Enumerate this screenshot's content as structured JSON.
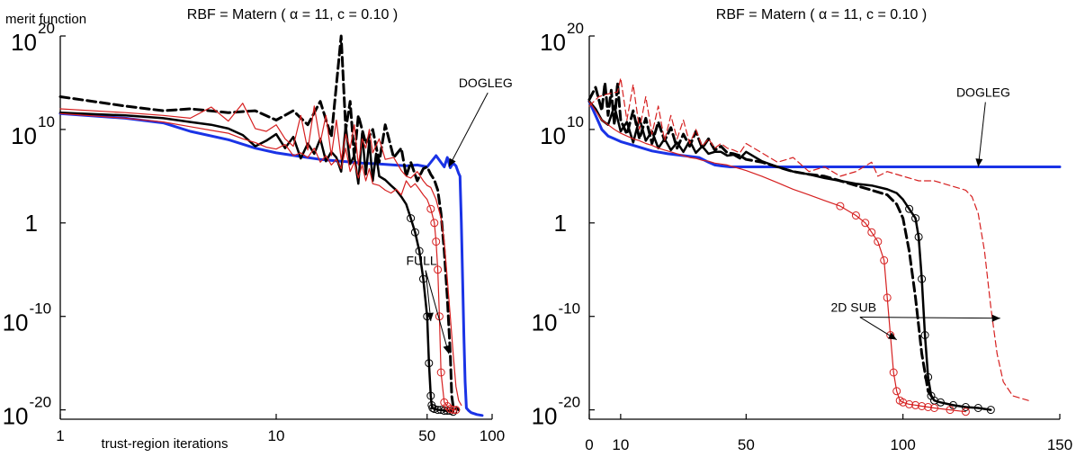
{
  "chart_data": [
    {
      "type": "line",
      "title": "RBF = Matern ( α = 11, c = 0.10 )",
      "ylabel": "merit function",
      "xlabel": "trust-region iterations",
      "xscale": "log",
      "xlim": [
        1,
        100
      ],
      "ylim": [
        -21,
        20
      ],
      "xticks": [
        {
          "value": 1,
          "label": "1"
        },
        {
          "value": 10,
          "label": "10"
        },
        {
          "value": 50,
          "label": "50"
        },
        {
          "value": 100,
          "label": "100"
        }
      ],
      "yticks": [
        {
          "value": 20,
          "base": "10",
          "exp": "20"
        },
        {
          "value": 10,
          "base": "10",
          "exp": "10"
        },
        {
          "value": 0,
          "base": "1",
          "exp": ""
        },
        {
          "value": -10,
          "base": "10",
          "exp": "-10"
        },
        {
          "value": -20,
          "base": "10",
          "exp": "-20"
        }
      ],
      "annotations": [
        {
          "text": "DOGLEG",
          "x": 70,
          "y": 14.5,
          "arrows": [
            [
              63,
              6
            ]
          ]
        },
        {
          "text": "FULL",
          "x": 40,
          "y": -4.5,
          "arrows": [
            [
              52,
              -10.5
            ],
            [
              63,
              -14
            ]
          ]
        }
      ],
      "series": [
        {
          "name": "dogleg",
          "color": "#1a33e6",
          "width": 3,
          "dash": "",
          "marker": "",
          "x": [
            1,
            2,
            3,
            4,
            6,
            8,
            10,
            13,
            16,
            20,
            25,
            30,
            35,
            40,
            45,
            50,
            55,
            60,
            62,
            64,
            66,
            68,
            70,
            71,
            72,
            73,
            74,
            75,
            76,
            78,
            80,
            85,
            90
          ],
          "y": [
            11.7,
            11.2,
            10.7,
            9.8,
            8.9,
            8.0,
            7.5,
            7.1,
            6.8,
            6.6,
            6.4,
            6.3,
            6.2,
            6.1,
            6.2,
            6.0,
            7.2,
            6.0,
            7.0,
            5.9,
            6.4,
            6.1,
            5.3,
            5.0,
            0,
            -6,
            -12,
            -17,
            -19.8,
            -20.1,
            -20.3,
            -20.5,
            -20.6
          ]
        },
        {
          "name": "full-solid",
          "color": "#000000",
          "width": 2.5,
          "dash": "",
          "marker": "o",
          "x": [
            1,
            2,
            3,
            4,
            5,
            6,
            7,
            8,
            9,
            10,
            11,
            12,
            13,
            14,
            15,
            16,
            17,
            18,
            19,
            20,
            21,
            22,
            23,
            24,
            25,
            26,
            27,
            28,
            29,
            30,
            32,
            34,
            36,
            38,
            40,
            42,
            44,
            46,
            48,
            50,
            51,
            52,
            52.5,
            53,
            54,
            56,
            58,
            60,
            62,
            64,
            66
          ],
          "y": [
            11.8,
            11.5,
            11.2,
            10.8,
            10.5,
            10.1,
            9.4,
            8.2,
            8.8,
            9.5,
            8.0,
            9.2,
            6.9,
            8.5,
            7.4,
            9.0,
            6.6,
            7.6,
            7.0,
            5.5,
            10.4,
            6.3,
            7.2,
            4.2,
            9.6,
            5.2,
            8.8,
            4.5,
            7.4,
            5.0,
            4.6,
            4.0,
            3.5,
            2.8,
            2.0,
            0.5,
            -1.0,
            -3.0,
            -6.0,
            -10.0,
            -15.0,
            -18.5,
            -19.5,
            -19.8,
            -19.9,
            -20.0,
            -20.0,
            -20.1,
            -20.1,
            -20.1,
            -20.2
          ]
        },
        {
          "name": "full-dashed",
          "color": "#000000",
          "width": 3,
          "dash": "10,5",
          "marker": "",
          "x": [
            1,
            2,
            3,
            4,
            6,
            8,
            10,
            12,
            14,
            16,
            18,
            20,
            21,
            22,
            23,
            24,
            26,
            28,
            30,
            32,
            35,
            38,
            40,
            42,
            45,
            48,
            50,
            52,
            54,
            56,
            58,
            60,
            62,
            64,
            65,
            66,
            68,
            70
          ],
          "y": [
            13.5,
            12.5,
            12.0,
            12.2,
            11.8,
            12.0,
            11.0,
            12.0,
            10.5,
            13.0,
            9.2,
            20.0,
            10.0,
            13.0,
            7.0,
            11.5,
            8.5,
            10.0,
            6.5,
            10.5,
            7.0,
            8.0,
            5.0,
            6.5,
            4.5,
            5.8,
            6.0,
            5.2,
            4.6,
            3.5,
            1.0,
            -3.0,
            -8.0,
            -14.0,
            -18.5,
            -19.6,
            -19.8,
            -20.0
          ]
        },
        {
          "name": "twod-thin",
          "color": "#d62020",
          "width": 1.2,
          "dash": "",
          "marker": "",
          "x": [
            1,
            2,
            3,
            4,
            5,
            6,
            7,
            8,
            9,
            10,
            11,
            12,
            13,
            14,
            15,
            16,
            17,
            18,
            19,
            20,
            21,
            22,
            23,
            24,
            25,
            26,
            27,
            28,
            30,
            32,
            35,
            38,
            40,
            42,
            45,
            48,
            50,
            52,
            55,
            58,
            60,
            62,
            64,
            66,
            68,
            70,
            72
          ],
          "y": [
            12.2,
            11.8,
            11.5,
            11.2,
            12.4,
            10.9,
            12.8,
            10.1,
            9.8,
            10.5,
            9.0,
            8.2,
            11.5,
            7.8,
            12.5,
            8.6,
            11.5,
            7.2,
            11.0,
            6.8,
            9.5,
            8.0,
            10.5,
            6.2,
            9.0,
            8.0,
            10.0,
            7.5,
            9.0,
            6.8,
            7.0,
            5.6,
            5.0,
            4.8,
            5.5,
            4.5,
            4.0,
            3.8,
            2.5,
            0.5,
            -2.0,
            -6.0,
            -10.0,
            -14.0,
            -17.5,
            -19.0,
            -19.5
          ]
        },
        {
          "name": "twod-circles",
          "color": "#d62020",
          "width": 1.2,
          "dash": "",
          "marker": "o",
          "x": [
            1,
            2,
            3,
            4,
            5,
            6,
            7,
            8,
            9,
            10,
            11,
            12,
            13,
            14,
            15,
            16,
            17,
            18,
            19,
            20,
            21,
            22,
            23,
            24,
            25,
            26,
            27,
            28,
            30,
            32,
            34,
            36,
            38,
            40,
            42,
            44,
            46,
            48,
            50,
            52,
            54,
            55,
            56,
            57,
            58,
            60,
            62,
            64,
            66,
            68
          ],
          "y": [
            11.7,
            11.2,
            10.8,
            10.3,
            9.9,
            9.6,
            9.0,
            8.6,
            8.1,
            7.9,
            8.4,
            7.2,
            7.5,
            7.0,
            8.0,
            6.5,
            7.2,
            6.2,
            6.8,
            5.8,
            8.0,
            5.5,
            6.5,
            4.8,
            6.2,
            4.5,
            5.8,
            4.2,
            4.0,
            3.5,
            3.2,
            3.6,
            3.0,
            4.5,
            3.8,
            4.2,
            3.6,
            3.0,
            2.5,
            1.5,
            0,
            -2,
            -5,
            -10,
            -16,
            -19.2,
            -19.6,
            -19.9,
            -20.0,
            -20.0
          ]
        }
      ]
    },
    {
      "type": "line",
      "title": "RBF = Matern ( α = 11, c = 0.10 )",
      "xscale": "linear",
      "xlim": [
        0,
        150
      ],
      "ylim": [
        -21,
        20
      ],
      "xticks": [
        {
          "value": 0,
          "label": "0"
        },
        {
          "value": 10,
          "label": "10"
        },
        {
          "value": 50,
          "label": "50"
        },
        {
          "value": 100,
          "label": "100"
        },
        {
          "value": 150,
          "label": "150"
        }
      ],
      "yticks": [
        {
          "value": 20,
          "base": "10",
          "exp": "20"
        },
        {
          "value": 10,
          "base": "10",
          "exp": "10"
        },
        {
          "value": 0,
          "base": "1",
          "exp": ""
        },
        {
          "value": -10,
          "base": "10",
          "exp": "-10"
        },
        {
          "value": -20,
          "base": "10",
          "exp": "-20"
        }
      ],
      "annotations": [
        {
          "text": "DOGLEG",
          "x": 117,
          "y": 13.5,
          "arrows": [
            [
              124,
              6
            ]
          ]
        },
        {
          "text": "2D SUB",
          "x": 77,
          "y": -9.5,
          "arrows": [
            [
              98,
              -12.5
            ],
            [
              131,
              -10.2
            ]
          ]
        }
      ],
      "series": [
        {
          "name": "dogleg",
          "color": "#1a33e6",
          "width": 3,
          "dash": "",
          "marker": "",
          "x": [
            0,
            2,
            4,
            6,
            8,
            10,
            15,
            20,
            25,
            30,
            35,
            38,
            40,
            42,
            45,
            50,
            60,
            70,
            80,
            90,
            100,
            110,
            120,
            130,
            150
          ],
          "y": [
            13.0,
            11.5,
            10.0,
            9.3,
            9.0,
            8.7,
            8.2,
            7.7,
            7.4,
            7.2,
            7.0,
            6.5,
            6.2,
            6.1,
            6.0,
            6.0,
            6.0,
            6.0,
            6.0,
            6.0,
            6.0,
            6.0,
            6.0,
            6.0,
            6.0
          ]
        },
        {
          "name": "full-solid",
          "color": "#000000",
          "width": 2.5,
          "dash": "",
          "marker": "o",
          "x": [
            0,
            2,
            4,
            6,
            8,
            10,
            12,
            14,
            16,
            18,
            20,
            22,
            24,
            26,
            28,
            30,
            32,
            34,
            36,
            38,
            40,
            42,
            44,
            46,
            48,
            50,
            55,
            60,
            65,
            70,
            75,
            80,
            85,
            90,
            95,
            98,
            100,
            102,
            104,
            105,
            106,
            107,
            108,
            109,
            110,
            112,
            116,
            120,
            124,
            128
          ],
          "y": [
            13.0,
            12.2,
            11.0,
            10.5,
            12.5,
            9.8,
            10.8,
            8.6,
            11.2,
            8.8,
            9.8,
            8.0,
            9.0,
            7.8,
            8.6,
            7.6,
            8.8,
            7.5,
            8.2,
            7.4,
            7.6,
            7.6,
            7.2,
            7.3,
            6.9,
            7.6,
            6.6,
            6.0,
            5.5,
            5.2,
            4.8,
            4.5,
            4.2,
            4.0,
            3.6,
            3.2,
            2.5,
            1.5,
            0.5,
            -1.5,
            -6,
            -12,
            -16.5,
            -18.5,
            -19.0,
            -19.2,
            -19.5,
            -19.7,
            -19.8,
            -20.0
          ]
        },
        {
          "name": "full-dashed",
          "color": "#000000",
          "width": 3,
          "dash": "10,5",
          "marker": "",
          "x": [
            0,
            2,
            4,
            5,
            6,
            7,
            8,
            9,
            10,
            12,
            14,
            16,
            18,
            20,
            22,
            24,
            26,
            28,
            30,
            32,
            34,
            36,
            38,
            40,
            42,
            44,
            46,
            48,
            50,
            55,
            60,
            65,
            70,
            75,
            80,
            85,
            90,
            95,
            98,
            100,
            102,
            104,
            106,
            108,
            110
          ],
          "y": [
            13.2,
            14.5,
            12.0,
            15.0,
            11.5,
            14.2,
            10.5,
            15.0,
            11.0,
            9.5,
            12.0,
            9.0,
            11.2,
            8.5,
            10.8,
            8.8,
            10.2,
            8.0,
            9.5,
            8.2,
            9.8,
            8.0,
            9.0,
            7.8,
            8.2,
            7.5,
            7.4,
            7.2,
            6.8,
            6.5,
            6.0,
            5.5,
            5.2,
            5.0,
            4.5,
            4.0,
            3.5,
            3.0,
            2.0,
            0.5,
            -3.0,
            -8.0,
            -14.0,
            -18.0,
            -19.0
          ]
        },
        {
          "name": "twod-dashed-thin",
          "color": "#d62020",
          "width": 1.2,
          "dash": "7,4",
          "marker": "",
          "x": [
            0,
            3,
            6,
            9,
            10,
            12,
            14,
            16,
            18,
            20,
            22,
            24,
            26,
            28,
            30,
            32,
            34,
            36,
            38,
            40,
            42,
            44,
            46,
            48,
            50,
            55,
            60,
            65,
            70,
            75,
            80,
            85,
            90,
            92,
            95,
            100,
            105,
            110,
            115,
            120,
            122,
            124,
            126,
            128,
            130,
            132,
            135,
            140
          ],
          "y": [
            12.5,
            13.5,
            13.8,
            14.0,
            15.5,
            11.0,
            14.8,
            10.0,
            13.5,
            9.5,
            12.5,
            8.8,
            11.5,
            9.0,
            11.0,
            8.5,
            10.0,
            8.2,
            9.0,
            8.0,
            8.5,
            8.0,
            7.8,
            7.5,
            8.5,
            7.5,
            6.5,
            7.0,
            5.5,
            6.0,
            5.0,
            5.5,
            6.5,
            5.0,
            5.5,
            5.0,
            4.5,
            4.5,
            4.0,
            3.5,
            2.8,
            1.0,
            -3.0,
            -9.0,
            -14.0,
            -17.0,
            -18.5,
            -19.0
          ]
        },
        {
          "name": "twod-circles",
          "color": "#d62020",
          "width": 1.2,
          "dash": "",
          "marker": "o",
          "x": [
            0,
            2,
            4,
            6,
            8,
            10,
            12,
            14,
            16,
            18,
            20,
            22,
            24,
            26,
            28,
            30,
            32,
            34,
            36,
            38,
            40,
            42,
            44,
            46,
            48,
            50,
            55,
            60,
            65,
            70,
            75,
            80,
            85,
            88,
            90,
            92,
            94,
            95,
            96,
            97,
            98,
            99,
            100,
            102,
            104,
            106,
            108,
            110,
            115,
            120
          ],
          "y": [
            13.0,
            12.0,
            11.0,
            10.5,
            10.0,
            9.6,
            9.3,
            9.0,
            8.8,
            8.5,
            8.3,
            8.0,
            7.8,
            7.6,
            7.4,
            7.2,
            7.0,
            6.9,
            6.7,
            6.6,
            6.4,
            6.3,
            6.2,
            6.0,
            5.8,
            5.6,
            5.0,
            4.3,
            3.6,
            3.0,
            2.4,
            1.8,
            0.8,
            0.0,
            -1.0,
            -2.0,
            -4.0,
            -8.0,
            -12.0,
            -16.0,
            -18.0,
            -19.0,
            -19.2,
            -19.4,
            -19.5,
            -19.6,
            -19.7,
            -19.8,
            -20.0,
            -20.2
          ]
        }
      ]
    }
  ]
}
